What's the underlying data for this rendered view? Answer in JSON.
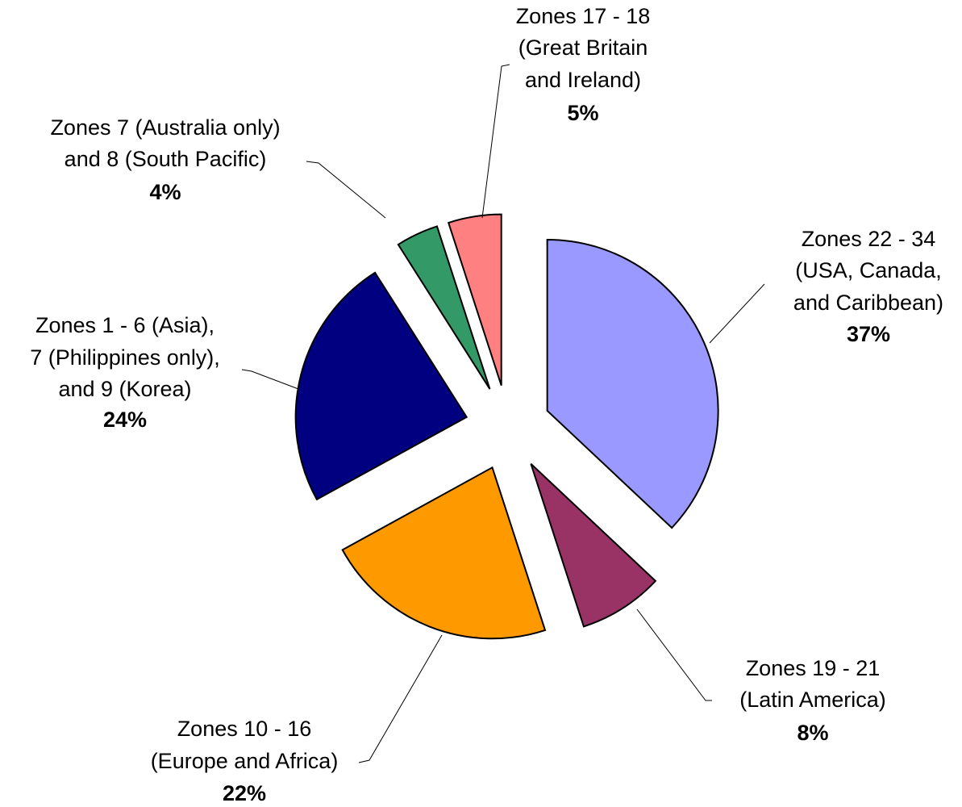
{
  "chart_data": {
    "type": "pie",
    "categories": [
      [
        "Zones 22 - 34",
        "(USA, Canada,",
        "and Caribbean)"
      ],
      [
        "Zones 19 - 21",
        "(Latin America)"
      ],
      [
        "Zones 10 - 16",
        "(Europe and Africa)"
      ],
      [
        "Zones 1 - 6 (Asia),",
        "7 (Philippines only),",
        "and 9 (Korea)"
      ],
      [
        "Zones 7 (Australia only)",
        "and 8 (South Pacific)"
      ],
      [
        "Zones 17 - 18",
        "(Great Britain",
        "and Ireland)"
      ]
    ],
    "values": [
      37,
      8,
      22,
      24,
      4,
      5
    ],
    "value_labels": [
      "37%",
      "8%",
      "22%",
      "24%",
      "4%",
      "5%"
    ],
    "colors": [
      "#9999ff",
      "#993366",
      "#ff9900",
      "#000080",
      "#339966",
      "#ff8080"
    ]
  }
}
